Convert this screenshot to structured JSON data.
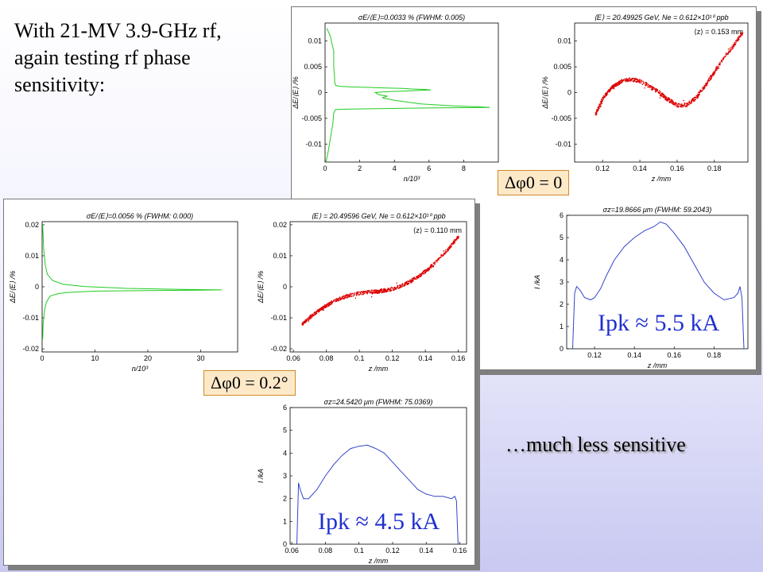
{
  "slide": {
    "title_lines": [
      "With 21-MV 3.9-GHz rf,",
      "again testing rf phase",
      "sensitivity:"
    ],
    "note": "…much less sensitive",
    "colors": {
      "hist": "#22cc22",
      "scatter": "#dd0000",
      "current": "#3344cc",
      "peak_text": "#1f2fd0"
    }
  },
  "labels": {
    "back_phase": "Δφ0 = 0",
    "front_phase": "Δφ0 = 0.2°",
    "back_peak": "Ipk ≈ 5.5 kA",
    "front_peak": "Ipk ≈ 4.5 kA"
  },
  "chart_data": [
    {
      "id": "back_hist",
      "type": "line",
      "title": "σE/⟨E⟩=0.0033 % (FWHM: 0.005)",
      "xlabel": "n/10³",
      "ylabel": "ΔE/⟨E⟩ /%",
      "xlim": [
        0,
        10
      ],
      "ylim": [
        -0.0135,
        0.0135
      ],
      "xticks": [
        0,
        2,
        4,
        6,
        8
      ],
      "yticks": [
        -0.01,
        -0.005,
        0,
        0.005,
        0.01
      ],
      "x": [
        0.1,
        0.3,
        0.5,
        0.5,
        0.55,
        0.55,
        0.6,
        0.6,
        0.7,
        0.9,
        1.5,
        2.5,
        3.5,
        4.5,
        5.0,
        5.8,
        6.1,
        5.4,
        4.6,
        3.7,
        3.2,
        2.9,
        3.1,
        3.6,
        3.3,
        4.0,
        5.5,
        7.5,
        9.0,
        9.5,
        6.0,
        3.5,
        1.5,
        0.6,
        0.5,
        0.45,
        0.35,
        0.25,
        0.15,
        0.05
      ],
      "y": [
        0.0125,
        0.011,
        0.008,
        0.005,
        0.003,
        0.002,
        0.0016,
        0.0014,
        0.0013,
        0.0012,
        0.0011,
        0.001,
        0.0009,
        0.0008,
        0.0007,
        0.0006,
        0.0005,
        0.0004,
        0.0003,
        0.0002,
        0.0001,
        0.0,
        -0.0004,
        -0.0007,
        -0.001,
        -0.0015,
        -0.0022,
        -0.0026,
        -0.0028,
        -0.0029,
        -0.003,
        -0.0031,
        -0.0032,
        -0.0033,
        -0.004,
        -0.006,
        -0.008,
        -0.01,
        -0.012,
        -0.0135
      ]
    },
    {
      "id": "back_scatter",
      "type": "scatter",
      "title": "⟨E⟩ = 20.49925 GeV, Ne = 0.612×10¹⁰ ppb",
      "annotation": "⟨z⟩ = 0.153 mm",
      "xlabel": "z /mm",
      "ylabel": "ΔE/⟨E⟩ /%",
      "xlim": [
        0.105,
        0.198
      ],
      "ylim": [
        -0.0135,
        0.0135
      ],
      "xticks": [
        0.12,
        0.14,
        0.16,
        0.18
      ],
      "yticks": [
        -0.01,
        -0.005,
        0,
        0.005,
        0.01
      ],
      "band": {
        "x": [
          0.116,
          0.12,
          0.125,
          0.13,
          0.135,
          0.14,
          0.145,
          0.15,
          0.155,
          0.16,
          0.165,
          0.17,
          0.175,
          0.18,
          0.185,
          0.19,
          0.195
        ],
        "y": [
          -0.0042,
          -0.0009,
          0.0012,
          0.0023,
          0.0027,
          0.0023,
          0.0013,
          0.0001,
          -0.0013,
          -0.0024,
          -0.0023,
          -0.0009,
          0.0015,
          0.0042,
          0.0068,
          0.0092,
          0.0118
        ]
      }
    },
    {
      "id": "back_current",
      "type": "line",
      "title": "σz=19.8666 μm (FWHM: 59.2043)",
      "xlabel": "z /mm",
      "ylabel": "I /kA",
      "xlim": [
        0.106,
        0.197
      ],
      "ylim": [
        0,
        6
      ],
      "xticks": [
        0.12,
        0.14,
        0.16,
        0.18
      ],
      "yticks": [
        0,
        1,
        2,
        3,
        4,
        5,
        6
      ],
      "x": [
        0.109,
        0.11,
        0.111,
        0.113,
        0.115,
        0.118,
        0.12,
        0.123,
        0.126,
        0.13,
        0.135,
        0.14,
        0.145,
        0.15,
        0.153,
        0.156,
        0.16,
        0.165,
        0.17,
        0.175,
        0.18,
        0.185,
        0.19,
        0.192,
        0.193,
        0.194,
        0.195
      ],
      "y": [
        0,
        2.5,
        2.8,
        2.6,
        2.3,
        2.2,
        2.3,
        2.7,
        3.3,
        4.0,
        4.6,
        5.0,
        5.3,
        5.5,
        5.7,
        5.6,
        5.2,
        4.6,
        3.8,
        3.0,
        2.5,
        2.2,
        2.3,
        2.5,
        2.8,
        2.3,
        0
      ]
    },
    {
      "id": "front_hist",
      "type": "line",
      "title": "σE/⟨E⟩=0.0056 % (FWHM: 0.000)",
      "xlabel": "n/10³",
      "ylabel": "ΔE/⟨E⟩ /%",
      "xlim": [
        0,
        37
      ],
      "ylim": [
        -0.021,
        0.021
      ],
      "xticks": [
        0,
        10,
        20,
        30
      ],
      "yticks": [
        -0.02,
        -0.01,
        0,
        0.01,
        0.02
      ],
      "x": [
        0.1,
        0.3,
        0.6,
        1,
        2,
        4,
        8,
        16,
        25,
        34,
        30,
        20,
        10,
        5,
        3,
        1.5,
        0.8,
        0.4,
        0.2,
        0.1
      ],
      "y": [
        0.02,
        0.012,
        0.007,
        0.004,
        0.002,
        0.0008,
        0.0001,
        -0.0005,
        -0.0008,
        -0.001,
        -0.0011,
        -0.0012,
        -0.0014,
        -0.0018,
        -0.0022,
        -0.003,
        -0.005,
        -0.008,
        -0.012,
        -0.017
      ]
    },
    {
      "id": "front_scatter",
      "type": "scatter",
      "title": "⟨E⟩ = 20.49596 GeV, Ne = 0.612×10¹⁰ ppb",
      "annotation": "⟨z⟩ = 0.110 mm",
      "xlabel": "z /mm",
      "ylabel": "ΔE/⟨E⟩ /%",
      "xlim": [
        0.058,
        0.165
      ],
      "ylim": [
        -0.021,
        0.021
      ],
      "xticks": [
        0.06,
        0.08,
        0.1,
        0.12,
        0.14,
        0.16
      ],
      "yticks": [
        -0.02,
        -0.01,
        0,
        0.01,
        0.02
      ],
      "band": {
        "x": [
          0.065,
          0.07,
          0.075,
          0.08,
          0.085,
          0.09,
          0.095,
          0.1,
          0.105,
          0.11,
          0.115,
          0.12,
          0.125,
          0.13,
          0.135,
          0.14,
          0.145,
          0.15,
          0.155,
          0.16
        ],
        "y": [
          -0.012,
          -0.0095,
          -0.0075,
          -0.0058,
          -0.0043,
          -0.0032,
          -0.0024,
          -0.0019,
          -0.0016,
          -0.0014,
          -0.0011,
          -0.0005,
          0.0004,
          0.0017,
          0.0033,
          0.0052,
          0.0075,
          0.0102,
          0.0132,
          0.0165
        ]
      }
    },
    {
      "id": "front_current",
      "type": "line",
      "title": "σz=24.5420 μm (FWHM: 75.0369)",
      "xlabel": "z /mm",
      "ylabel": "I /kA",
      "xlim": [
        0.059,
        0.164
      ],
      "ylim": [
        0,
        6
      ],
      "xticks": [
        0.06,
        0.08,
        0.1,
        0.12,
        0.14,
        0.16
      ],
      "yticks": [
        0,
        1,
        2,
        3,
        4,
        5,
        6
      ],
      "x": [
        0.063,
        0.064,
        0.065,
        0.067,
        0.07,
        0.075,
        0.08,
        0.085,
        0.09,
        0.095,
        0.1,
        0.105,
        0.11,
        0.115,
        0.12,
        0.125,
        0.13,
        0.135,
        0.14,
        0.145,
        0.15,
        0.155,
        0.157,
        0.158,
        0.159
      ],
      "y": [
        0,
        2.7,
        2.4,
        2.0,
        2.0,
        2.4,
        3.0,
        3.5,
        3.9,
        4.2,
        4.3,
        4.35,
        4.2,
        4.0,
        3.6,
        3.2,
        2.8,
        2.4,
        2.2,
        2.1,
        2.1,
        2.0,
        2.1,
        1.9,
        0
      ]
    }
  ]
}
